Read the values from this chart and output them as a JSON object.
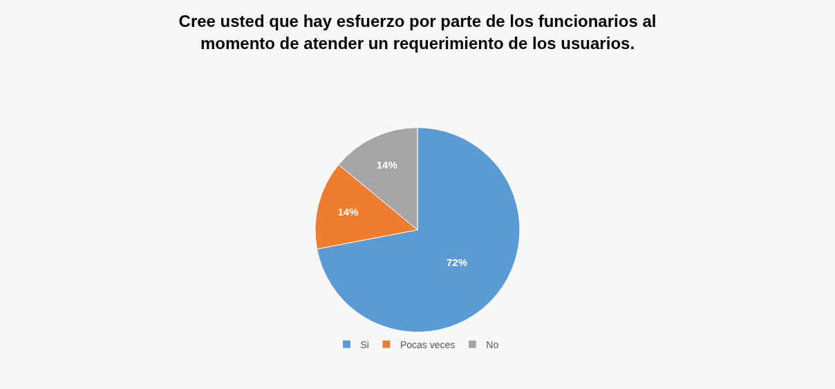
{
  "chart_data": {
    "type": "pie",
    "title": "Cree usted que hay esfuerzo por parte de los funcionarios al\nmomento de atender un requerimiento de los usuarios.",
    "categories": [
      "Si",
      "Pocas veces",
      "No"
    ],
    "values": [
      72,
      14,
      14
    ],
    "colors": [
      "#5b9bd5",
      "#ed7d31",
      "#a5a5a5"
    ],
    "value_labels": [
      "72%",
      "14%",
      "14%"
    ],
    "legend": "bottom"
  }
}
